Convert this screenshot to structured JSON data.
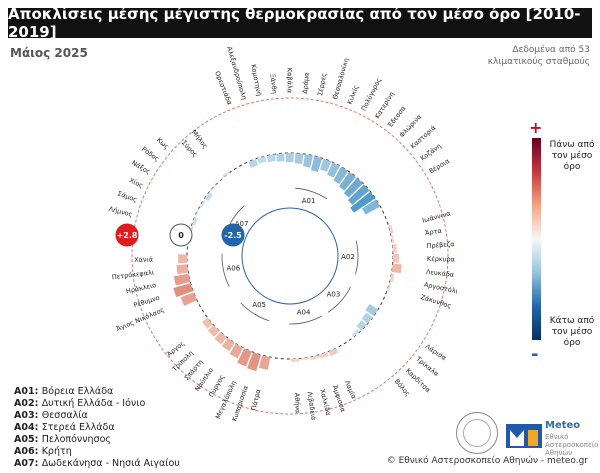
{
  "title": "Αποκλίσεις μέσης μέγιστης θερμοκρασίας από τον μέσο όρο [2010-2019]",
  "subtitle": "Μάιος 2025",
  "source_note": "Δεδομένα από 53 κλιματικούς σταθμούς",
  "colorbar": {
    "top_symbol": "+",
    "top_label": "Πάνω από τον μέσο όρο",
    "bottom_symbol": "-",
    "bottom_label": "Κάτω από τον μέσο όρο"
  },
  "scale_markers": [
    {
      "label": "+2.8",
      "value": 2.8,
      "color": "#e31a1c"
    },
    {
      "label": "0",
      "value": 0,
      "color": "#ffffff"
    },
    {
      "label": "-2.5",
      "value": -2.5,
      "color": "#2166ac"
    }
  ],
  "region_legend": [
    {
      "code": "A01:",
      "name": "Βόρεια Ελλάδα"
    },
    {
      "code": "A02:",
      "name": "Δυτική Ελλάδα - Ιόνιο"
    },
    {
      "code": "A03:",
      "name": "Θεσσαλία"
    },
    {
      "code": "A04:",
      "name": "Στερεά Ελλάδα"
    },
    {
      "code": "A05:",
      "name": "Πελοπόννησος"
    },
    {
      "code": "A06:",
      "name": "Κρήτη"
    },
    {
      "code": "A07:",
      "name": "Δωδεκάνησα - Νησιά Αιγαίου"
    }
  ],
  "footer": "© Εθνικό Αστεροσκοπείο Αθηνών - meteo.gr",
  "logo": {
    "name": "Meteo",
    "sub": "Εθνικό Αστεροσκοπείο Αθηνών"
  },
  "chart_data": {
    "type": "circular-bar",
    "unit": "°C",
    "range": [
      -2.5,
      2.8
    ],
    "regions": [
      "A01",
      "A02",
      "A03",
      "A04",
      "A05",
      "A06",
      "A07"
    ],
    "stations": [
      {
        "name": "Ορεστιάδα",
        "region": "A01",
        "value": -0.6
      },
      {
        "name": "Αλεξανδρούπολη",
        "region": "A01",
        "value": -0.5
      },
      {
        "name": "Κομοτηνή",
        "region": "A01",
        "value": -0.6
      },
      {
        "name": "Ξάνθη",
        "region": "A01",
        "value": -0.7
      },
      {
        "name": "Καβάλα",
        "region": "A01",
        "value": -0.8
      },
      {
        "name": "Δράμα",
        "region": "A01",
        "value": -0.9
      },
      {
        "name": "Σέρρες",
        "region": "A01",
        "value": -1.1
      },
      {
        "name": "Θεσσαλονίκη",
        "region": "A01",
        "value": -1.3
      },
      {
        "name": "Κιλκίς",
        "region": "A01",
        "value": -1.0
      },
      {
        "name": "Πολύγυρος",
        "region": "A01",
        "value": -1.2
      },
      {
        "name": "Κατερίνη",
        "region": "A01",
        "value": -1.4
      },
      {
        "name": "Έδεσσα",
        "region": "A01",
        "value": -1.6
      },
      {
        "name": "Φλώρινα",
        "region": "A01",
        "value": -1.8
      },
      {
        "name": "Καστοριά",
        "region": "A01",
        "value": -2.0
      },
      {
        "name": "Κοζάνη",
        "region": "A01",
        "value": -2.3
      },
      {
        "name": "Βέροια",
        "region": "A01",
        "value": -1.5
      },
      {
        "name": "Ιωάννινα",
        "region": "A02",
        "value": 0.3
      },
      {
        "name": "Άρτα",
        "region": "A02",
        "value": 0.2
      },
      {
        "name": "Πρέβεζα",
        "region": "A02",
        "value": 0.4
      },
      {
        "name": "Κέρκυρα",
        "region": "A02",
        "value": 0.6
      },
      {
        "name": "Λευκάδα",
        "region": "A02",
        "value": 0.9
      },
      {
        "name": "Αργοστόλι",
        "region": "A02",
        "value": 0.3
      },
      {
        "name": "Ζάκυνθος",
        "region": "A02",
        "value": 0.2
      },
      {
        "name": "Λάρισα",
        "region": "A03",
        "value": -0.9
      },
      {
        "name": "Τρίκαλα",
        "region": "A03",
        "value": -0.7
      },
      {
        "name": "Καρδίτσα",
        "region": "A03",
        "value": -0.6
      },
      {
        "name": "Βόλος",
        "region": "A03",
        "value": -0.3
      },
      {
        "name": "Λαμία",
        "region": "A04",
        "value": 0.5
      },
      {
        "name": "Άμφισσα",
        "region": "A04",
        "value": 0.4
      },
      {
        "name": "Χαλκίδα",
        "region": "A04",
        "value": 0.3
      },
      {
        "name": "Λιβαδειά",
        "region": "A04",
        "value": 0.2
      },
      {
        "name": "Αθήνα",
        "region": "A04",
        "value": 0.3
      },
      {
        "name": "Πάτρα",
        "region": "A05",
        "value": 1.3
      },
      {
        "name": "Κυπαρισσία",
        "region": "A05",
        "value": 1.7
      },
      {
        "name": "Μεγαλόπολη",
        "region": "A05",
        "value": 1.6
      },
      {
        "name": "Πύργος",
        "region": "A05",
        "value": 1.2
      },
      {
        "name": "Ναύπλιο",
        "region": "A05",
        "value": 1.0
      },
      {
        "name": "Σπάρτη",
        "region": "A05",
        "value": 0.9
      },
      {
        "name": "Τρίπολη",
        "region": "A05",
        "value": 0.8
      },
      {
        "name": "Άργος",
        "region": "A05",
        "value": 0.7
      },
      {
        "name": "Άγιος Νικόλαος",
        "region": "A06",
        "value": 1.4
      },
      {
        "name": "Ρέθυμνο",
        "region": "A06",
        "value": 1.8
      },
      {
        "name": "Ηράκλειο",
        "region": "A06",
        "value": 1.5
      },
      {
        "name": "Πετρόκεφαλι",
        "region": "A06",
        "value": 1.1
      },
      {
        "name": "Χανιά",
        "region": "A06",
        "value": 0.9
      },
      {
        "name": "Λήμνος",
        "region": "A07",
        "value": -0.2
      },
      {
        "name": "Σάμος",
        "region": "A07",
        "value": -0.3
      },
      {
        "name": "Χίος",
        "region": "A07",
        "value": -0.1
      },
      {
        "name": "Νάξος",
        "region": "A07",
        "value": -0.2
      },
      {
        "name": "Ρόδος",
        "region": "A07",
        "value": -0.4
      },
      {
        "name": "Κως",
        "region": "A07",
        "value": -0.1
      },
      {
        "name": "Σύρος",
        "region": "A07",
        "value": 0.1
      },
      {
        "name": "Μήλος",
        "region": "A07",
        "value": 0.2
      }
    ]
  }
}
